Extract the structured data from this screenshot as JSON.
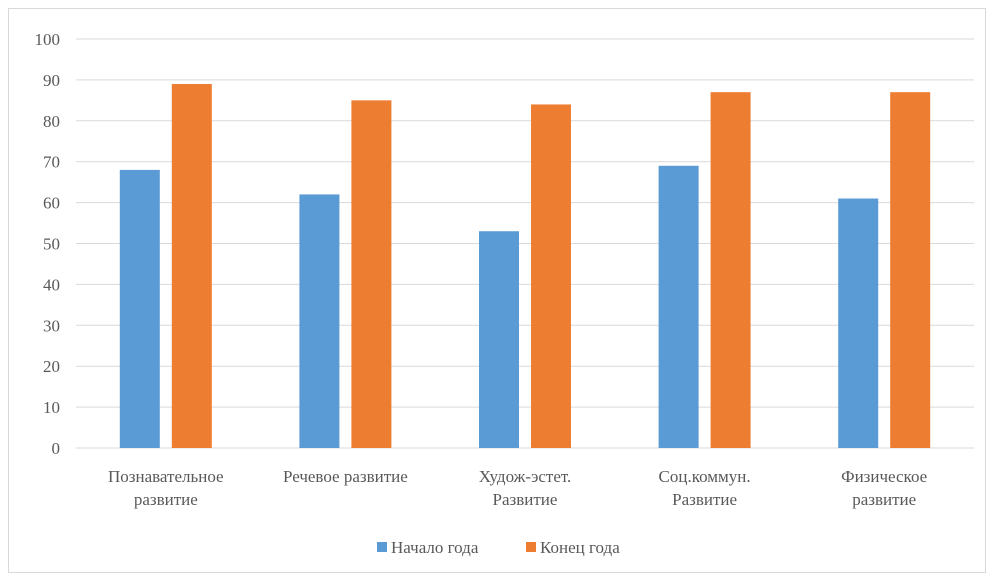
{
  "chart_data": {
    "type": "bar",
    "categories": [
      [
        "Познавательное",
        "развитие"
      ],
      [
        "Речевое развитие"
      ],
      [
        "Худож-эстет.",
        "Развитие"
      ],
      [
        "Соц.коммун.",
        "Развитие"
      ],
      [
        "Физическое",
        "развитие"
      ]
    ],
    "series": [
      {
        "name": "Начало года",
        "color": "#5b9bd5",
        "values": [
          68,
          62,
          53,
          69,
          61
        ]
      },
      {
        "name": "Конец года",
        "color": "#ed7d31",
        "values": [
          89,
          85,
          84,
          87,
          87
        ]
      }
    ],
    "ylim": [
      0,
      100
    ],
    "yticks": [
      0,
      10,
      20,
      30,
      40,
      50,
      60,
      70,
      80,
      90,
      100
    ],
    "grid": true,
    "legend_position": "bottom",
    "title": "",
    "xlabel": "",
    "ylabel": ""
  }
}
